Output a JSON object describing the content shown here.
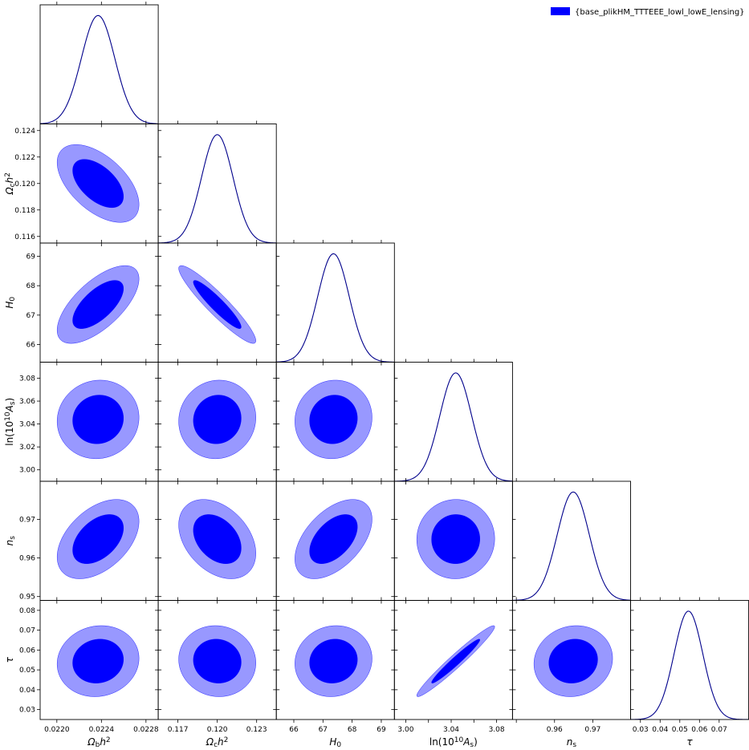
{
  "legend": {
    "label": "{base_plikHM_TTTEEE_lowl_lowE_lensing}",
    "color": "#0000ff"
  },
  "colors": {
    "inner": "#0000ff",
    "outer": "#9898ff",
    "line": "#00008b"
  },
  "chart_data": {
    "type": "triangle-plot",
    "params": [
      {
        "key": "ombh2",
        "label": "Ωbh²",
        "tex": "\\Omega_b h^2",
        "mean": 0.02237,
        "sigma": 0.00015,
        "range": [
          0.02185,
          0.02291
        ],
        "ticks": [
          0.022,
          0.0224,
          0.0228
        ],
        "tick_labels": [
          "0.0220",
          "0.0224",
          "0.0228"
        ]
      },
      {
        "key": "omch2",
        "label": "Ωch²",
        "tex": "\\Omega_c h^2",
        "mean": 0.12,
        "sigma": 0.0012,
        "range": [
          0.1155,
          0.1245
        ],
        "ticks": [
          0.117,
          0.12,
          0.123
        ],
        "tick_labels": [
          "0.117",
          "0.120",
          "0.123"
        ],
        "row_ticks": [
          0.116,
          0.118,
          0.12,
          0.122,
          0.124
        ],
        "row_tick_labels": [
          "0.116",
          "0.118",
          "0.120",
          "0.122",
          "0.124"
        ]
      },
      {
        "key": "H0",
        "label": "H0",
        "tex": "H_0",
        "mean": 67.36,
        "sigma": 0.54,
        "range": [
          65.4,
          69.45
        ],
        "ticks": [
          66,
          67,
          68,
          69
        ],
        "tick_labels": [
          "66",
          "67",
          "68",
          "69"
        ]
      },
      {
        "key": "logA",
        "label": "ln(10^10 As)",
        "tex": "\\ln(10^{10}A_s)",
        "mean": 3.044,
        "sigma": 0.014,
        "range": [
          2.99,
          3.094
        ],
        "ticks": [
          3.0,
          3.02,
          3.04,
          3.06,
          3.08
        ],
        "tick_labels": [
          "3.00",
          "3.04",
          "3.08"
        ],
        "row_tick_labels": [
          "3.00",
          "3.02",
          "3.04",
          "3.06",
          "3.08"
        ]
      },
      {
        "key": "ns",
        "label": "ns",
        "tex": "n_s",
        "mean": 0.9649,
        "sigma": 0.0042,
        "range": [
          0.949,
          0.9799
        ],
        "ticks": [
          0.95,
          0.96,
          0.97
        ],
        "tick_labels": [
          "0.96",
          "0.97"
        ],
        "row_tick_labels": [
          "0.95",
          "0.96",
          "0.97"
        ]
      },
      {
        "key": "tau",
        "label": "τ",
        "tex": "\\tau",
        "mean": 0.0544,
        "sigma": 0.0073,
        "range": [
          0.025,
          0.085
        ],
        "ticks": [
          0.03,
          0.04,
          0.05,
          0.06,
          0.07
        ],
        "tick_labels": [
          "0.03",
          "0.04",
          "0.05",
          "0.06",
          "0.07"
        ],
        "row_ticks": [
          0.03,
          0.04,
          0.05,
          0.06,
          0.07,
          0.08
        ],
        "row_tick_labels": [
          "0.03",
          "0.04",
          "0.05",
          "0.06",
          "0.07",
          "0.08"
        ]
      }
    ],
    "correlations": [
      [
        1.0,
        -0.54,
        0.66,
        0.05,
        0.45,
        0.08
      ],
      [
        -0.54,
        1.0,
        -0.93,
        0.05,
        -0.36,
        -0.05
      ],
      [
        0.66,
        -0.93,
        1.0,
        0.05,
        0.5,
        0.07
      ],
      [
        0.05,
        0.05,
        0.05,
        1.0,
        0.01,
        0.97
      ],
      [
        0.45,
        -0.36,
        0.5,
        0.01,
        1.0,
        0.08
      ],
      [
        0.08,
        -0.05,
        0.07,
        0.97,
        0.08,
        1.0
      ]
    ],
    "contour_levels": [
      "68%",
      "95%"
    ],
    "grid": false,
    "legend_position": "top-right"
  }
}
